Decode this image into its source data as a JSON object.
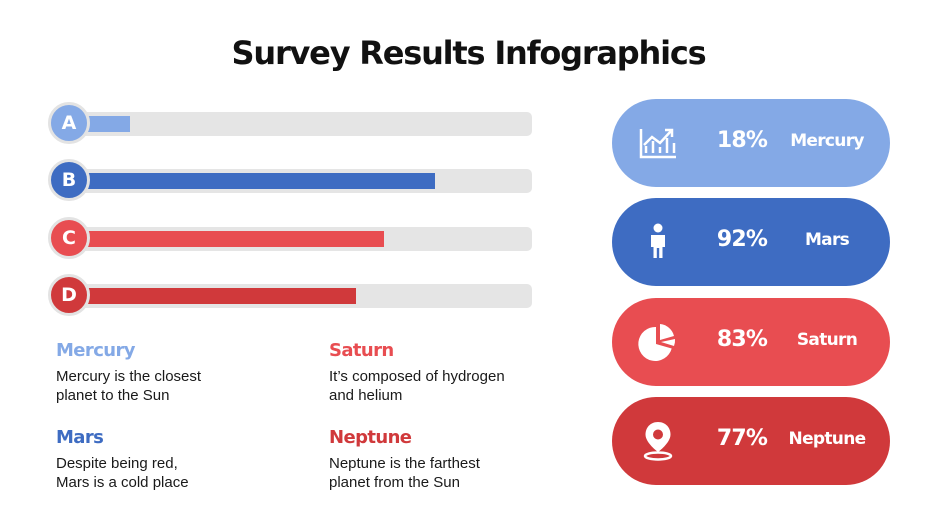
{
  "title": "Survey Results Infographics",
  "colors": {
    "mercury": "#84a9e6",
    "mars": "#3e6cc2",
    "saturn": "#e84d51",
    "neptune": "#d0393b",
    "track": "#e5e5e5"
  },
  "chart_data": {
    "type": "bar",
    "categories": [
      "A",
      "B",
      "C",
      "D"
    ],
    "values": [
      13,
      79,
      68,
      62
    ],
    "ylim": [
      0,
      100
    ],
    "grid": false
  },
  "descriptions": [
    {
      "heading": "Mercury",
      "text": "Mercury is the closest\nplanet to the Sun"
    },
    {
      "heading": "Mars",
      "text": "Despite being red,\nMars is a cold place"
    },
    {
      "heading": "Saturn",
      "text": "It’s composed of hydrogen\nand helium"
    },
    {
      "heading": "Neptune",
      "text": "Neptune is the farthest\nplanet from the Sun"
    }
  ],
  "stats": [
    {
      "percent": "18%",
      "name": "Mercury",
      "icon": "growth-chart-icon"
    },
    {
      "percent": "92%",
      "name": "Mars",
      "icon": "person-icon"
    },
    {
      "percent": "83%",
      "name": "Saturn",
      "icon": "pie-chart-icon"
    },
    {
      "percent": "77%",
      "name": "Neptune",
      "icon": "location-pin-icon"
    }
  ]
}
